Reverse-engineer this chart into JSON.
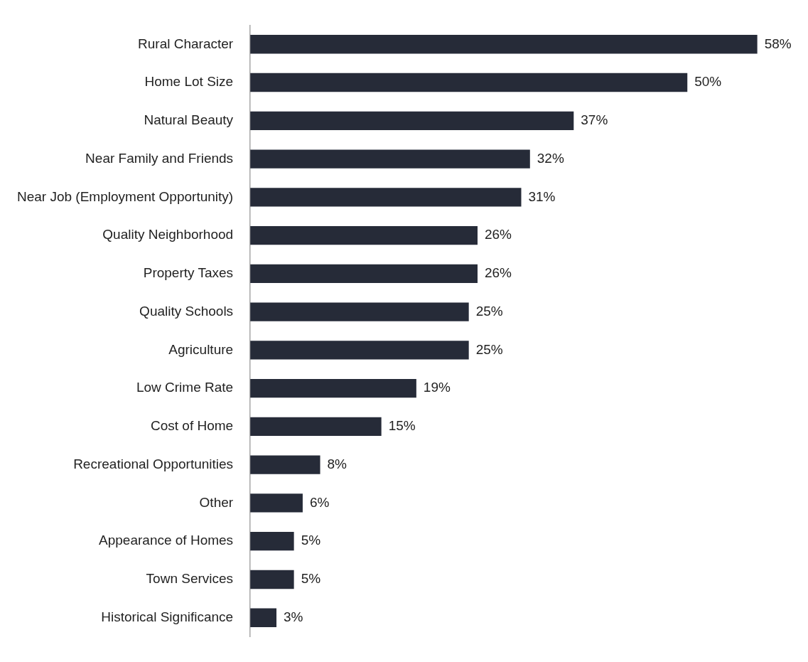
{
  "chart_data": {
    "type": "bar",
    "orientation": "horizontal",
    "categories": [
      "Rural Character",
      "Home Lot Size",
      "Natural Beauty",
      "Near Family and Friends",
      "Near Job (Employment Opportunity)",
      "Quality Neighborhood",
      "Property Taxes",
      "Quality Schools",
      "Agriculture",
      "Low Crime Rate",
      "Cost of Home",
      "Recreational Opportunities",
      "Other",
      "Appearance of Homes",
      "Town Services",
      "Historical Significance"
    ],
    "values": [
      58,
      50,
      37,
      32,
      31,
      26,
      26,
      25,
      25,
      19,
      15,
      8,
      6,
      5,
      5,
      3
    ],
    "value_labels": [
      "58%",
      "50%",
      "37%",
      "32%",
      "31%",
      "26%",
      "26%",
      "25%",
      "25%",
      "19%",
      "15%",
      "8%",
      "6%",
      "5%",
      "5%",
      "3%"
    ],
    "color": "#262b38",
    "grid": false,
    "legend": false,
    "tick_labels": "y"
  }
}
